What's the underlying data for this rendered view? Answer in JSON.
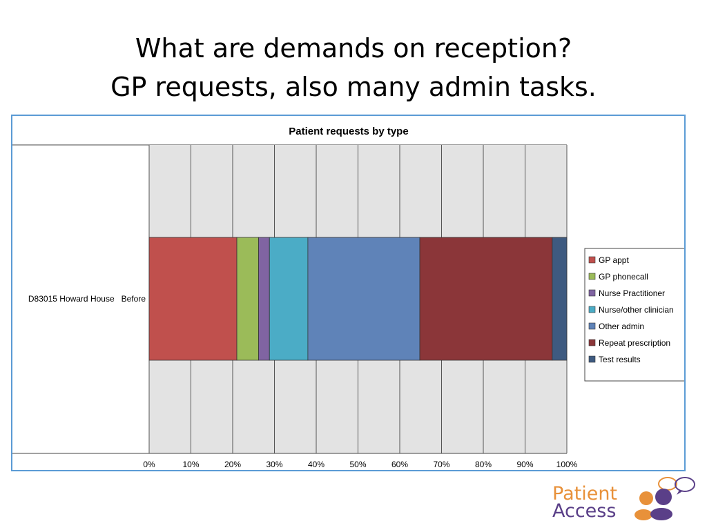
{
  "slide": {
    "title_line1": "What are demands on reception?",
    "title_line2": "GP requests, also many admin tasks."
  },
  "chart_data": {
    "type": "bar",
    "orientation": "horizontal",
    "stacked": "percent",
    "title": "Patient requests by type",
    "categories": [
      "D83015 Howard House   Before"
    ],
    "series": [
      {
        "name": "GP appt",
        "color": "#c0504d",
        "values": [
          21
        ]
      },
      {
        "name": "GP phonecall",
        "color": "#9bbb59",
        "values": [
          5.2
        ]
      },
      {
        "name": "Nurse Practitioner",
        "color": "#8064a2",
        "values": [
          2.6
        ]
      },
      {
        "name": "Nurse/other clinician",
        "color": "#4bacc6",
        "values": [
          9.2
        ]
      },
      {
        "name": "Other admin",
        "color": "#5f83b8",
        "values": [
          26.8
        ]
      },
      {
        "name": "Repeat prescription",
        "color": "#8b3639",
        "values": [
          31.7
        ]
      },
      {
        "name": "Test results",
        "color": "#3e5a80",
        "values": [
          3.5
        ]
      }
    ],
    "x_ticks": [
      "0%",
      "10%",
      "20%",
      "30%",
      "40%",
      "50%",
      "60%",
      "70%",
      "80%",
      "90%",
      "100%"
    ],
    "xlim": [
      0,
      100
    ],
    "grid": "vertical",
    "legend": "right",
    "plot_background": "#e3e3e3"
  },
  "logo": {
    "word1": "Patient",
    "word2": "Access",
    "color1": "#e8913a",
    "color2": "#5a3f88"
  }
}
